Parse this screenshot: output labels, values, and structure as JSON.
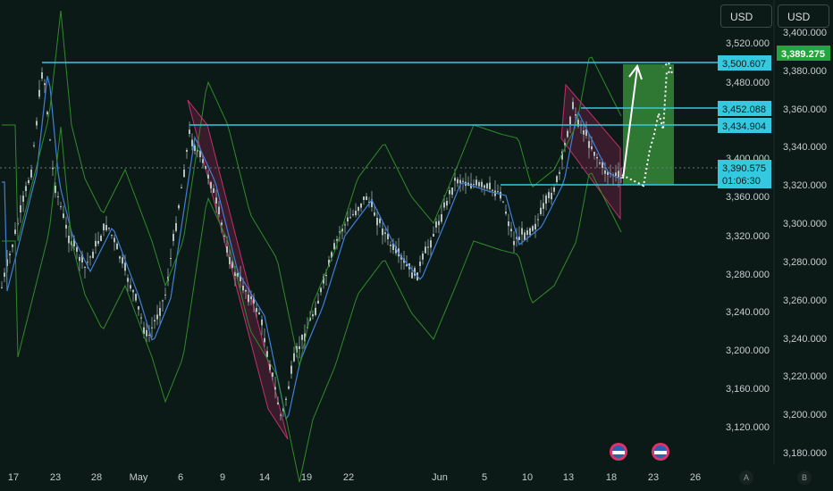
{
  "currency": {
    "left_label": "USD",
    "right_label": "USD"
  },
  "colors": {
    "background": "#0c1a17",
    "candle": "#9aa8a6",
    "ma_line": "#3f7fd6",
    "envelope": "#2f8a2a",
    "level_line": "#35c9e0",
    "channel": "#8b2352",
    "target_box": "#3ea140",
    "arrow": "#ffffff"
  },
  "chart_data": {
    "type": "candlestick",
    "title": "",
    "left_axis": {
      "ticks": [
        3520,
        3480,
        3440,
        3400,
        3360,
        3320,
        3280,
        3240,
        3200,
        3160,
        3120
      ],
      "tick_labels": [
        "3,520.000",
        "3,480.000",
        "3,452.088",
        "3,434.904",
        "3,400.000",
        "3,360.000",
        "3,320.000",
        "3,280.000",
        "3,240.000",
        "3,200.000",
        "3,160.000",
        "3,120.000"
      ]
    },
    "right_axis": {
      "tick_labels": [
        "3,400.000",
        "3,380.000",
        "3,360.000",
        "3,340.000",
        "3,320.000",
        "3,300.000",
        "3,280.000",
        "3,260.000",
        "3,240.000",
        "3,220.000",
        "3,200.000",
        "3,180.000"
      ],
      "ticks": [
        3400,
        3380,
        3360,
        3340,
        3320,
        3300,
        3280,
        3260,
        3240,
        3220,
        3200,
        3180
      ]
    },
    "x_axis": {
      "labels": [
        "17",
        "23",
        "28",
        "May",
        "6",
        "9",
        "14",
        "19",
        "22",
        "Jun",
        "5",
        "10",
        "13",
        "18",
        "23",
        "26"
      ]
    },
    "levels": [
      {
        "label": "3,500.607",
        "value": 3500.607
      },
      {
        "label": "3,452.088",
        "value": 3452.088
      },
      {
        "label": "3,434.904",
        "value": 3434.904
      },
      {
        "label": "3,390.575",
        "value": 3390.575,
        "sub": "01:06:30"
      }
    ],
    "last_price": {
      "label": "3,389.275",
      "value": 3389.275
    },
    "scale_buttons": [
      "A",
      "B"
    ]
  }
}
